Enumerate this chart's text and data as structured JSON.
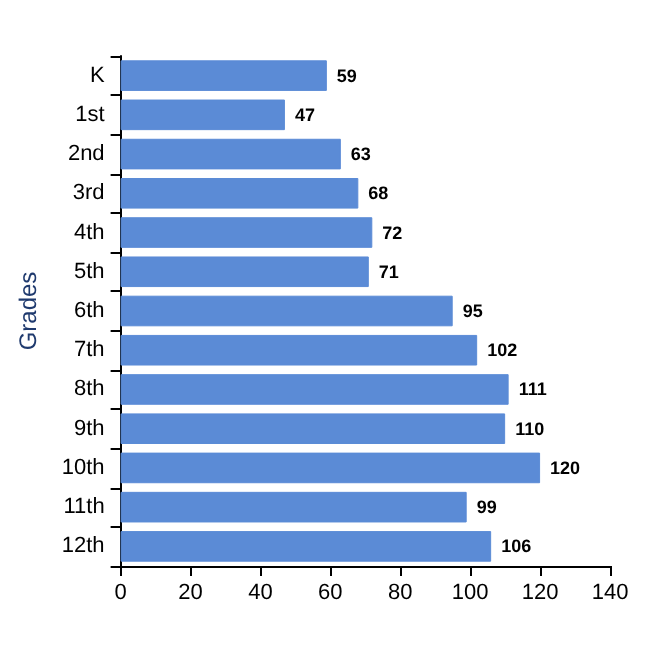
{
  "chart_data": {
    "type": "bar",
    "orientation": "horizontal",
    "ylabel": "Grades",
    "categories": [
      "K",
      "1st",
      "2nd",
      "3rd",
      "4th",
      "5th",
      "6th",
      "7th",
      "8th",
      "9th",
      "10th",
      "11th",
      "12th"
    ],
    "values": [
      59,
      47,
      63,
      68,
      72,
      71,
      95,
      102,
      111,
      110,
      120,
      99,
      106
    ],
    "color": "#5b8bd6",
    "xlim": [
      0,
      140
    ],
    "xticks": [
      0,
      20,
      40,
      60,
      80,
      100,
      120,
      140
    ],
    "data_labels": true,
    "grid": false
  }
}
